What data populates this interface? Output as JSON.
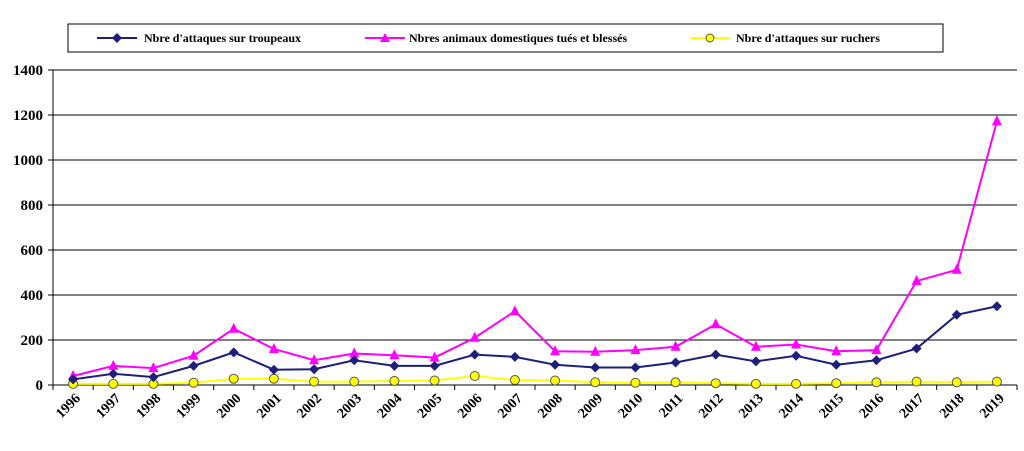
{
  "chart_data": {
    "type": "line",
    "title": "",
    "xlabel": "",
    "ylabel": "",
    "ylim": [
      0,
      1400
    ],
    "yticks": [
      0,
      200,
      400,
      600,
      800,
      1000,
      1200,
      1400
    ],
    "grid": true,
    "legend_position": "top",
    "x": [
      "1996",
      "1997",
      "1998",
      "1999",
      "2000",
      "2001",
      "2002",
      "2003",
      "2004",
      "2005",
      "2006",
      "2007",
      "2008",
      "2009",
      "2010",
      "2011",
      "2012",
      "2013",
      "2014",
      "2015",
      "2016",
      "2017",
      "2018",
      "2019"
    ],
    "series": [
      {
        "name": "Nbre d'attaques sur troupeaux",
        "color": "#1f1f7a",
        "marker": "diamond",
        "values": [
          25,
          50,
          35,
          85,
          145,
          68,
          70,
          110,
          85,
          85,
          135,
          125,
          90,
          78,
          78,
          100,
          135,
          105,
          130,
          90,
          110,
          162,
          312,
          350
        ]
      },
      {
        "name": "Nbres animaux domestiques tués et blessés",
        "color": "#ff00ff",
        "marker": "triangle",
        "values": [
          40,
          85,
          75,
          130,
          250,
          160,
          110,
          140,
          132,
          122,
          210,
          328,
          150,
          148,
          155,
          170,
          270,
          170,
          180,
          150,
          155,
          462,
          512,
          1172
        ]
      },
      {
        "name": "Nbre d'attaques sur ruchers",
        "color": "#ffff00",
        "marker": "circle",
        "values": [
          5,
          5,
          5,
          10,
          28,
          28,
          15,
          15,
          18,
          20,
          40,
          22,
          20,
          12,
          10,
          12,
          8,
          5,
          5,
          8,
          12,
          15,
          12,
          15
        ]
      }
    ]
  }
}
